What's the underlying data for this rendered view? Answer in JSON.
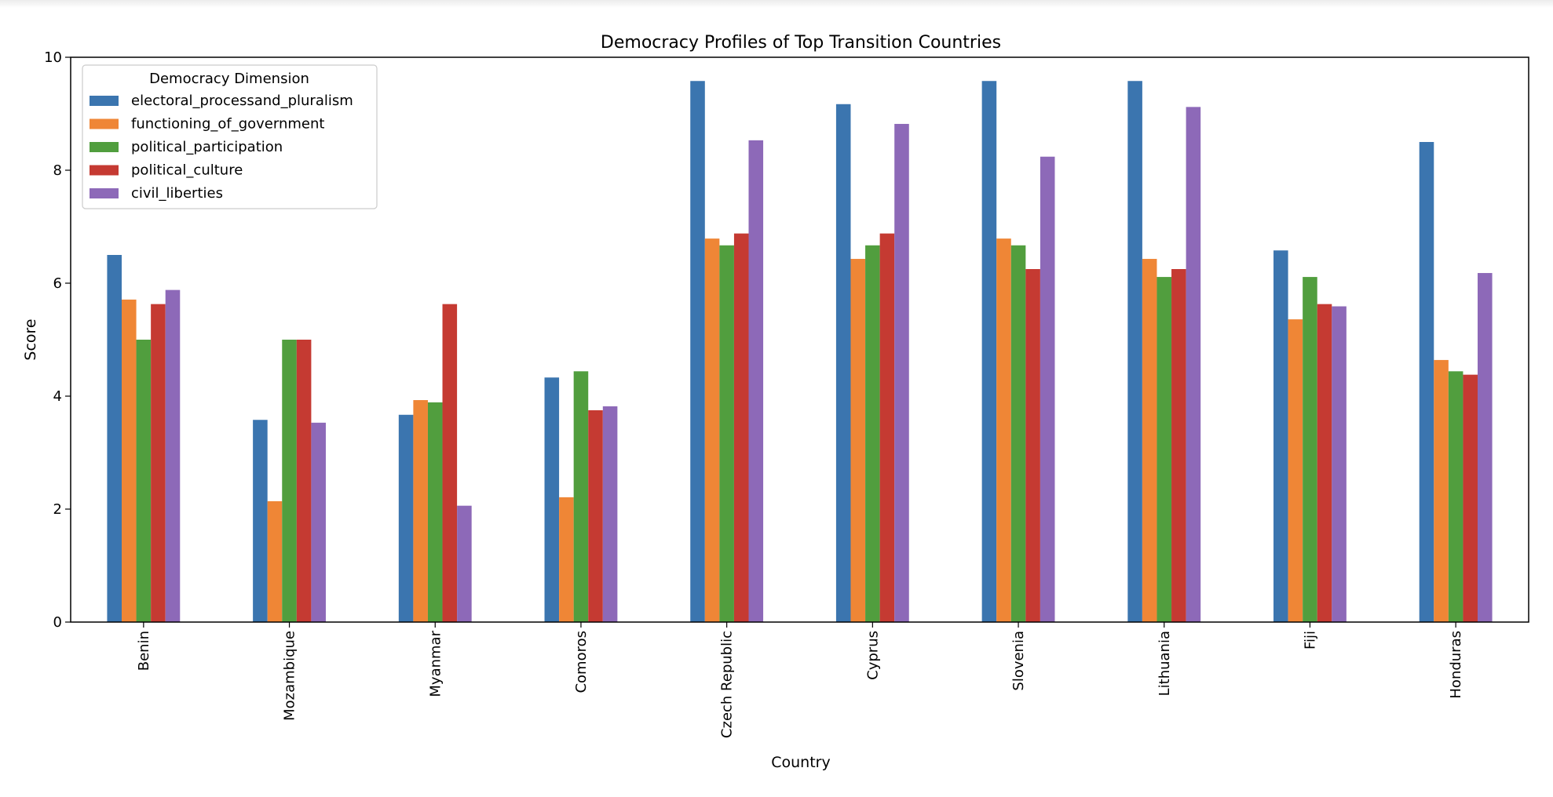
{
  "chart_data": {
    "type": "bar",
    "title": "Democracy Profiles of Top Transition Countries",
    "xlabel": "Country",
    "ylabel": "Score",
    "ylim": [
      0,
      10
    ],
    "yticks": [
      0,
      2,
      4,
      6,
      8,
      10
    ],
    "grid": false,
    "legend": {
      "title": "Democracy Dimension",
      "position": "top-left"
    },
    "categories": [
      "Benin",
      "Mozambique",
      "Myanmar",
      "Comoros",
      "Czech Republic",
      "Cyprus",
      "Slovenia",
      "Lithuania",
      "Fiji",
      "Honduras"
    ],
    "series": [
      {
        "name": "electoral_processand_pluralism",
        "color": "#3b75af",
        "values": [
          6.5,
          3.58,
          3.67,
          4.33,
          9.58,
          9.17,
          9.58,
          9.58,
          6.58,
          8.5
        ]
      },
      {
        "name": "functioning_of_government",
        "color": "#ef8636",
        "values": [
          5.71,
          2.14,
          3.93,
          2.21,
          6.79,
          6.43,
          6.79,
          6.43,
          5.36,
          4.64
        ]
      },
      {
        "name": "political_participation",
        "color": "#519e3e",
        "values": [
          5.0,
          5.0,
          3.89,
          4.44,
          6.67,
          6.67,
          6.67,
          6.11,
          6.11,
          4.44
        ]
      },
      {
        "name": "political_culture",
        "color": "#c53a32",
        "values": [
          5.63,
          5.0,
          5.63,
          3.75,
          6.88,
          6.88,
          6.25,
          6.25,
          5.63,
          4.38
        ]
      },
      {
        "name": "civil_liberties",
        "color": "#8d69b8",
        "values": [
          5.88,
          3.53,
          2.06,
          3.82,
          8.53,
          8.82,
          8.24,
          9.12,
          5.59,
          6.18
        ]
      }
    ]
  }
}
